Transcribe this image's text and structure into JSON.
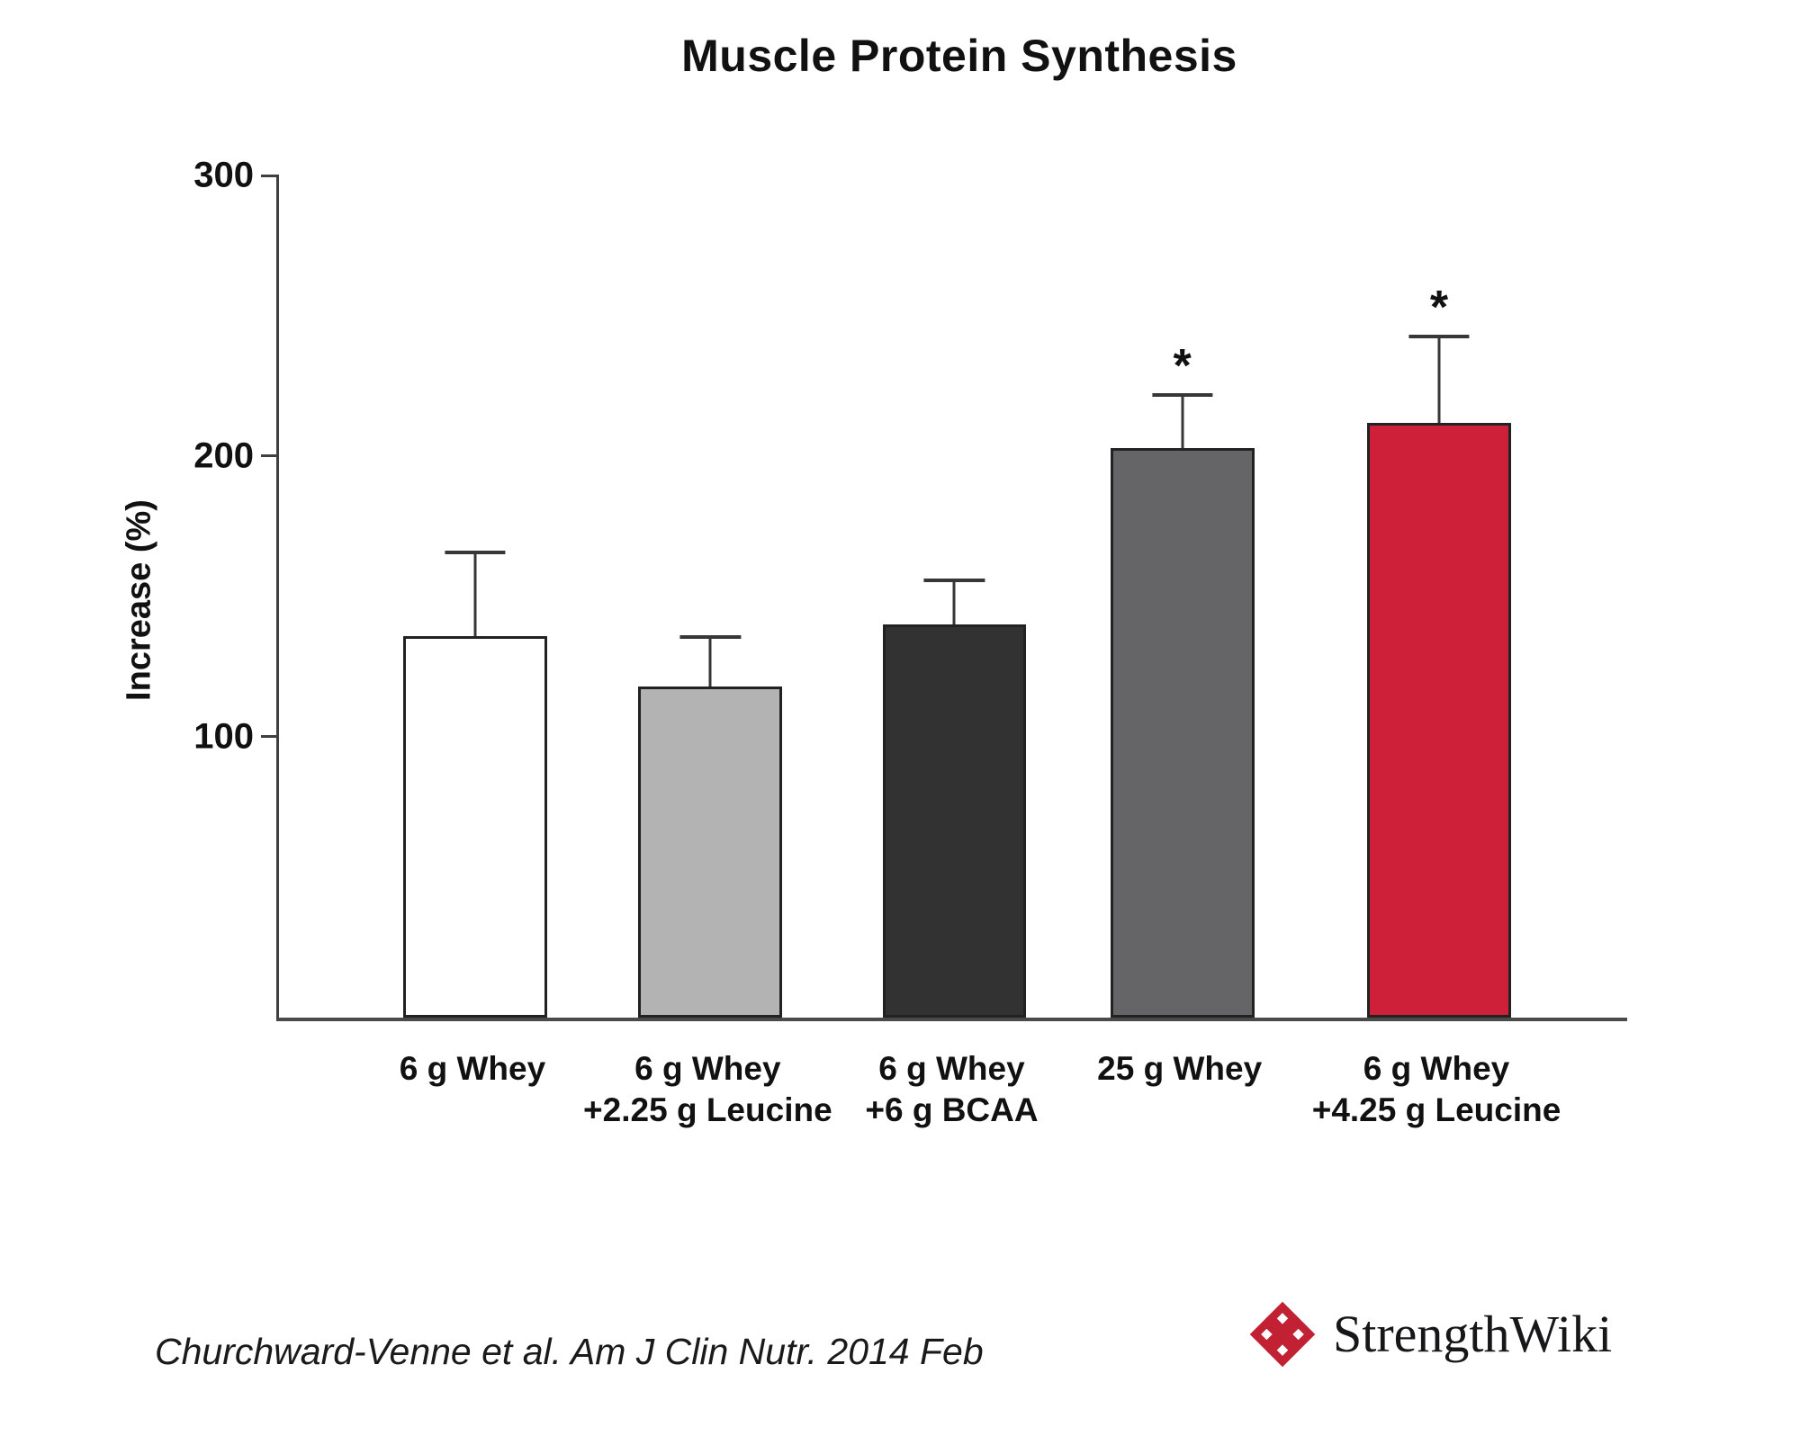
{
  "title": "Muscle Protein Synthesis",
  "footer": {
    "citation": "Churchward-Venne et al. Am J Clin Nutr. 2014 Feb",
    "brand": "StrengthWiki",
    "brand_color": "#C22033"
  },
  "chart_data": {
    "type": "bar",
    "title": "Muscle Protein Synthesis",
    "xlabel": "",
    "ylabel": "Increase (%)",
    "ylim": [
      0,
      300
    ],
    "yticks": [
      100,
      200,
      300
    ],
    "grid": false,
    "legend": "none",
    "categories": [
      "6 g Whey",
      "6 g Whey +2.25 g Leucine",
      "6 g Whey +6 g BCAA",
      "25 g Whey",
      "6 g Whey +4.25 g Leucine"
    ],
    "values": [
      136,
      118,
      140,
      203,
      212
    ],
    "errors_up": [
      29,
      17,
      15,
      18,
      30
    ],
    "significant": [
      false,
      false,
      false,
      true,
      true
    ],
    "annotations": [
      "",
      "",
      "",
      "*",
      "*"
    ],
    "bar_colors": [
      "#FFFFFF",
      "#B3B3B4",
      "#323232",
      "#656567",
      "#CE2038"
    ],
    "bar_border_color": "#222222",
    "layout": {
      "bar_centers_pct": [
        14.55,
        32.0,
        50.1,
        67.0,
        86.05
      ],
      "bar_width_pct": 10.68,
      "cap_width_frac": 0.42,
      "label_lines": [
        [
          "6 g Whey"
        ],
        [
          "6 g Whey",
          "+2.25 g Leucine"
        ],
        [
          "6 g Whey",
          "+6 g BCAA"
        ],
        [
          "25 g Whey"
        ],
        [
          "6 g Whey",
          "+4.25 g Leucine"
        ]
      ]
    }
  }
}
